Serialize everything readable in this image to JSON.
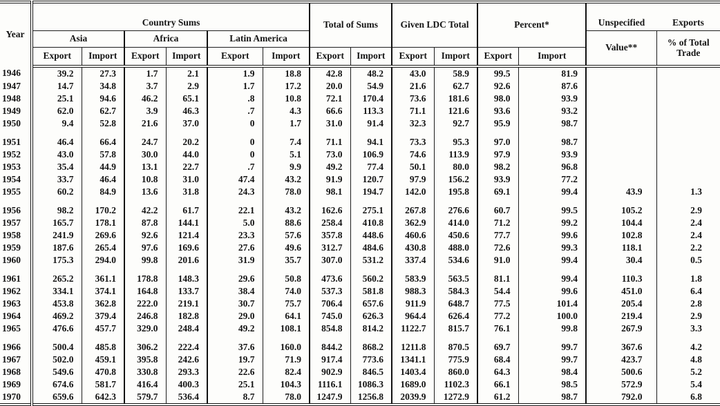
{
  "table": {
    "header": {
      "year": "Year",
      "country_sums": "Country Sums",
      "asia": "Asia",
      "africa": "Africa",
      "latin_america": "Latin America",
      "total_of_sums": "Total of Sums",
      "given_ldc_total": "Given LDC Total",
      "percent": "Percent*",
      "unspecified": "Unspecified",
      "exports": "Exports",
      "value": "Value**",
      "pct_of_total_trade": "% of Total Trade",
      "export": "Export",
      "import": "Import"
    },
    "columns": [
      "Year",
      "Asia Export",
      "Asia Import",
      "Africa Export",
      "Africa Import",
      "Latin America Export",
      "Latin America Import",
      "Total of Sums Export",
      "Total of Sums Import",
      "Given LDC Total Export",
      "Given LDC Total Import",
      "Percent Export",
      "Percent Import",
      "Unspecified Value",
      "Exports % of Total Trade"
    ],
    "groups": [
      [
        [
          "1946",
          "39.2",
          "27.3",
          "1.7",
          "2.1",
          "1.9",
          "18.8",
          "42.8",
          "48.2",
          "43.0",
          "58.9",
          "99.5",
          "81.9",
          "",
          ""
        ],
        [
          "1947",
          "14.7",
          "34.8",
          "3.7",
          "2.9",
          "1.7",
          "17.2",
          "20.0",
          "54.9",
          "21.6",
          "62.7",
          "92.6",
          "87.6",
          "",
          ""
        ],
        [
          "1948",
          "25.1",
          "94.6",
          "46.2",
          "65.1",
          ".8",
          "10.8",
          "72.1",
          "170.4",
          "73.6",
          "181.6",
          "98.0",
          "93.9",
          "",
          ""
        ],
        [
          "1949",
          "62.0",
          "62.7",
          "3.9",
          "46.3",
          ".7",
          "4.3",
          "66.6",
          "113.3",
          "71.1",
          "121.6",
          "93.6",
          "93.2",
          "",
          ""
        ],
        [
          "1950",
          "9.4",
          "52.8",
          "21.6",
          "37.0",
          "0",
          "1.7",
          "31.0",
          "91.4",
          "32.3",
          "92.7",
          "95.9",
          "98.7",
          "",
          ""
        ]
      ],
      [
        [
          "1951",
          "46.4",
          "66.4",
          "24.7",
          "20.2",
          "0",
          "7.4",
          "71.1",
          "94.1",
          "73.3",
          "95.3",
          "97.0",
          "98.7",
          "",
          ""
        ],
        [
          "1952",
          "43.0",
          "57.8",
          "30.0",
          "44.0",
          "0",
          "5.1",
          "73.0",
          "106.9",
          "74.6",
          "113.9",
          "97.9",
          "93.9",
          "",
          ""
        ],
        [
          "1953",
          "35.4",
          "44.9",
          "13.1",
          "22.7",
          ".7",
          "9.9",
          "49.2",
          "77.4",
          "50.1",
          "80.0",
          "98.2",
          "96.8",
          "",
          ""
        ],
        [
          "1954",
          "33.7",
          "46.4",
          "10.8",
          "31.0",
          "47.4",
          "43.2",
          "91.9",
          "120.7",
          "97.9",
          "156.2",
          "93.9",
          "77.2",
          "",
          ""
        ],
        [
          "1955",
          "60.2",
          "84.9",
          "13.6",
          "31.8",
          "24.3",
          "78.0",
          "98.1",
          "194.7",
          "142.0",
          "195.8",
          "69.1",
          "99.4",
          "43.9",
          "1.3"
        ]
      ],
      [
        [
          "1956",
          "98.2",
          "170.2",
          "42.2",
          "61.7",
          "22.1",
          "43.2",
          "162.6",
          "275.1",
          "267.8",
          "276.6",
          "60.7",
          "99.5",
          "105.2",
          "2.9"
        ],
        [
          "1957",
          "165.7",
          "178.1",
          "87.8",
          "144.1",
          "5.0",
          "88.6",
          "258.4",
          "410.8",
          "362.9",
          "414.0",
          "71.2",
          "99.2",
          "104.4",
          "2.4"
        ],
        [
          "1958",
          "241.9",
          "269.6",
          "92.6",
          "121.4",
          "23.3",
          "57.6",
          "357.8",
          "448.6",
          "460.6",
          "450.6",
          "77.7",
          "99.6",
          "102.8",
          "2.4"
        ],
        [
          "1959",
          "187.6",
          "265.4",
          "97.6",
          "169.6",
          "27.6",
          "49.6",
          "312.7",
          "484.6",
          "430.8",
          "488.0",
          "72.6",
          "99.3",
          "118.1",
          "2.2"
        ],
        [
          "1960",
          "175.3",
          "294.0",
          "99.8",
          "201.6",
          "31.9",
          "35.7",
          "307.0",
          "531.2",
          "337.4",
          "534.6",
          "91.0",
          "99.4",
          "30.4",
          "0.5"
        ]
      ],
      [
        [
          "1961",
          "265.2",
          "361.1",
          "178.8",
          "148.3",
          "29.6",
          "50.8",
          "473.6",
          "560.2",
          "583.9",
          "563.5",
          "81.1",
          "99.4",
          "110.3",
          "1.8"
        ],
        [
          "1962",
          "334.1",
          "374.1",
          "164.8",
          "133.7",
          "38.4",
          "74.0",
          "537.3",
          "581.8",
          "988.3",
          "584.3",
          "54.4",
          "99.6",
          "451.0",
          "6.4"
        ],
        [
          "1963",
          "453.8",
          "362.8",
          "222.0",
          "219.1",
          "30.7",
          "75.7",
          "706.4",
          "657.6",
          "911.9",
          "648.7",
          "77.5",
          "101.4",
          "205.4",
          "2.8"
        ],
        [
          "1964",
          "469.2",
          "379.4",
          "246.8",
          "182.8",
          "29.0",
          "64.1",
          "745.0",
          "626.3",
          "964.4",
          "626.4",
          "77.2",
          "100.0",
          "219.4",
          "2.9"
        ],
        [
          "1965",
          "476.6",
          "457.7",
          "329.0",
          "248.4",
          "49.2",
          "108.1",
          "854.8",
          "814.2",
          "1122.7",
          "815.7",
          "76.1",
          "99.8",
          "267.9",
          "3.3"
        ]
      ],
      [
        [
          "1966",
          "500.4",
          "485.8",
          "306.2",
          "222.4",
          "37.6",
          "160.0",
          "844.2",
          "868.2",
          "1211.8",
          "870.5",
          "69.7",
          "99.7",
          "367.6",
          "4.2"
        ],
        [
          "1967",
          "502.0",
          "459.1",
          "395.8",
          "242.6",
          "19.7",
          "71.9",
          "917.4",
          "773.6",
          "1341.1",
          "775.9",
          "68.4",
          "99.7",
          "423.7",
          "4.8"
        ],
        [
          "1968",
          "549.6",
          "470.8",
          "330.8",
          "293.3",
          "22.6",
          "82.4",
          "902.9",
          "846.5",
          "1403.4",
          "860.0",
          "64.3",
          "98.4",
          "500.6",
          "5.2"
        ],
        [
          "1969",
          "674.6",
          "581.7",
          "416.4",
          "400.3",
          "25.1",
          "104.3",
          "1116.1",
          "1086.3",
          "1689.0",
          "1102.3",
          "66.1",
          "98.5",
          "572.9",
          "5.4"
        ],
        [
          "1970",
          "659.6",
          "642.3",
          "579.7",
          "536.4",
          "8.7",
          "78.0",
          "1247.9",
          "1256.8",
          "2039.9",
          "1272.9",
          "61.2",
          "98.7",
          "792.0",
          "6.8"
        ]
      ]
    ]
  }
}
